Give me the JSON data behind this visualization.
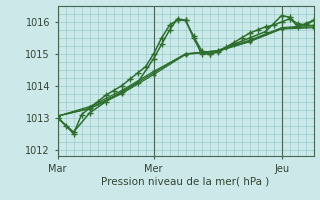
{
  "title": "Pression niveau de la mer( hPa )",
  "bg_color": "#cce8e8",
  "grid_color": "#99cccc",
  "line_color": "#2d6e2d",
  "ylim": [
    1011.8,
    1016.5
  ],
  "xlim": [
    0,
    96
  ],
  "xtick_positions": [
    0,
    36,
    84
  ],
  "xtick_labels": [
    "Mar",
    "Mer",
    "Jeu"
  ],
  "ytick_positions": [
    1012,
    1013,
    1014,
    1015,
    1016
  ],
  "ytick_labels": [
    "1012",
    "1013",
    "1014",
    "1015",
    "1016"
  ],
  "vlines": [
    0,
    36,
    84
  ],
  "series": [
    [
      0,
      1013.0,
      3,
      1012.75,
      6,
      1012.5,
      9,
      1013.1,
      12,
      1013.3,
      15,
      1013.5,
      18,
      1013.7,
      21,
      1013.85,
      24,
      1014.0,
      27,
      1014.2,
      30,
      1014.4,
      33,
      1014.6,
      36,
      1015.0,
      39,
      1015.5,
      42,
      1015.9,
      45,
      1016.07,
      48,
      1016.05,
      51,
      1015.55,
      54,
      1015.1,
      57,
      1015.0,
      60,
      1015.1,
      63,
      1015.2,
      66,
      1015.35,
      69,
      1015.5,
      72,
      1015.65,
      75,
      1015.75,
      78,
      1015.85,
      81,
      1015.9,
      84,
      1016.0,
      87,
      1016.1,
      90,
      1015.95,
      93,
      1015.9,
      96,
      1016.05
    ],
    [
      0,
      1013.0,
      6,
      1012.55,
      12,
      1013.15,
      18,
      1013.5,
      24,
      1013.8,
      30,
      1014.1,
      36,
      1014.85,
      39,
      1015.3,
      42,
      1015.75,
      45,
      1016.1,
      48,
      1016.05,
      51,
      1015.5,
      54,
      1015.0,
      57,
      1015.0,
      60,
      1015.05,
      66,
      1015.3,
      72,
      1015.5,
      78,
      1015.7,
      84,
      1016.2,
      87,
      1016.15,
      90,
      1015.85,
      93,
      1015.95,
      96,
      1016.05
    ],
    [
      0,
      1013.05,
      12,
      1013.35,
      24,
      1013.85,
      36,
      1014.45,
      48,
      1015.0,
      60,
      1015.1,
      72,
      1015.4,
      84,
      1015.8,
      96,
      1015.85
    ],
    [
      0,
      1013.05,
      12,
      1013.3,
      24,
      1013.8,
      36,
      1014.4,
      48,
      1015.0,
      60,
      1015.1,
      72,
      1015.43,
      84,
      1015.82,
      96,
      1015.9
    ],
    [
      0,
      1013.05,
      12,
      1013.28,
      24,
      1013.75,
      36,
      1014.35,
      48,
      1014.98,
      60,
      1015.08,
      72,
      1015.38,
      84,
      1015.78,
      96,
      1015.82
    ]
  ]
}
